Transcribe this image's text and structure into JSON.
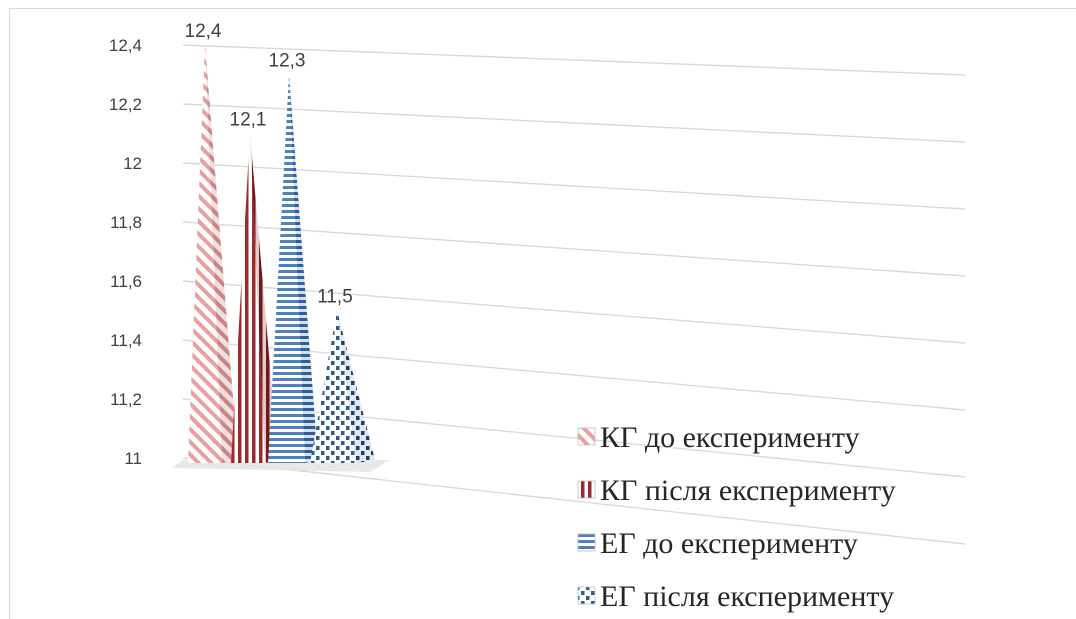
{
  "chart_data": {
    "type": "bar",
    "style": "3d-pyramid",
    "title": "",
    "xlabel": "",
    "ylabel": "",
    "ylim": [
      11,
      12.4
    ],
    "yticks": [
      "12,4",
      "12,2",
      "12",
      "11,8",
      "11,6",
      "11,4",
      "11,2",
      "11"
    ],
    "grid": true,
    "legend_position": "bottom-right",
    "series": [
      {
        "name": "КГ до експерименту",
        "value": 12.4,
        "label": "12,4",
        "color": "#e8a0a0",
        "pattern": "diagonal-stripes"
      },
      {
        "name": "КГ після експерименту",
        "value": 12.1,
        "label": "12,1",
        "color": "#9c2a2a",
        "pattern": "vertical-stripes"
      },
      {
        "name": "ЕГ до експерименту",
        "value": 12.3,
        "label": "12,3",
        "color": "#4f81bd",
        "pattern": "horizontal-stripes"
      },
      {
        "name": "ЕГ після експерименту",
        "value": 11.5,
        "label": "11,5",
        "color": "#2e5b8a",
        "pattern": "dots"
      }
    ]
  }
}
